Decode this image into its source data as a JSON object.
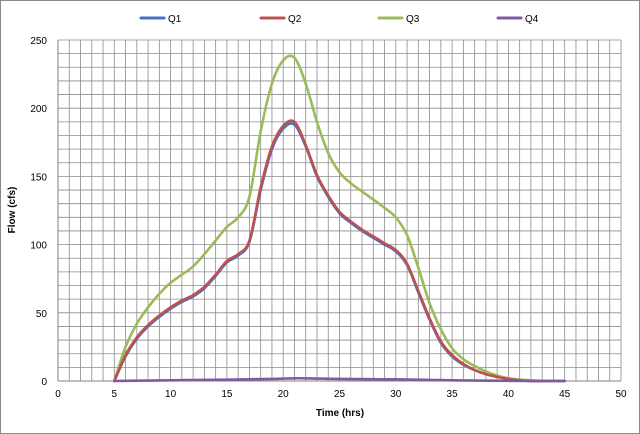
{
  "chart_data": {
    "type": "line",
    "title": "",
    "xlabel": "Time (hrs)",
    "ylabel": "Flow (cfs)",
    "xlim": [
      0,
      50
    ],
    "ylim": [
      0,
      250
    ],
    "x_ticks": [
      "0",
      "5",
      "10",
      "15",
      "20",
      "25",
      "30",
      "35",
      "40",
      "45",
      "50"
    ],
    "y_ticks": [
      "0",
      "50",
      "100",
      "150",
      "200",
      "250"
    ],
    "grid": true,
    "legend_position": "top",
    "series": [
      {
        "name": "Q1",
        "color": "#4472C4",
        "x": [
          5,
          6,
          7,
          8,
          9,
          10,
          11,
          12,
          13,
          14,
          15,
          16,
          17,
          18,
          19,
          20,
          21,
          22,
          23,
          24,
          25,
          26,
          27,
          28,
          29,
          30,
          31,
          32,
          33,
          34,
          35,
          36,
          37,
          38,
          39,
          40,
          41,
          42,
          43,
          44,
          45
        ],
        "y": [
          0,
          18,
          31,
          40,
          47,
          53,
          58,
          62,
          68,
          77,
          87,
          92,
          102,
          140,
          170,
          185,
          188,
          172,
          150,
          135,
          123,
          116,
          110,
          105,
          100,
          95,
          85,
          65,
          45,
          28,
          18,
          12,
          8,
          5,
          3,
          1.5,
          0.5,
          0,
          0,
          0,
          0
        ]
      },
      {
        "name": "Q2",
        "color": "#C0504D",
        "x": [
          5,
          6,
          7,
          8,
          9,
          10,
          11,
          12,
          13,
          14,
          15,
          16,
          17,
          18,
          19,
          20,
          21,
          22,
          23,
          24,
          25,
          26,
          27,
          28,
          29,
          30,
          31,
          32,
          33,
          34,
          35,
          36,
          37,
          38,
          39,
          40,
          41,
          42,
          43,
          44,
          45
        ],
        "y": [
          0,
          19,
          32,
          41,
          48,
          54,
          59,
          63,
          69,
          78,
          88,
          93,
          103,
          142,
          172,
          187,
          190,
          173,
          151,
          136,
          124,
          117,
          111,
          106,
          101,
          96,
          86,
          66,
          46,
          29,
          19,
          12.5,
          8,
          5,
          3,
          1.5,
          0.5,
          0,
          0,
          0,
          0
        ]
      },
      {
        "name": "Q3",
        "color": "#9BBB59",
        "x": [
          5,
          6,
          7,
          8,
          9,
          10,
          11,
          12,
          13,
          14,
          15,
          16,
          17,
          18,
          19,
          20,
          21,
          22,
          23,
          24,
          25,
          26,
          27,
          28,
          29,
          30,
          31,
          32,
          33,
          34,
          35,
          36,
          37,
          38,
          39,
          40,
          41,
          42,
          43,
          44,
          45
        ],
        "y": [
          0,
          25,
          42,
          54,
          64,
          72,
          78,
          84,
          93,
          103,
          113,
          120,
          135,
          183,
          218,
          235,
          237,
          218,
          190,
          167,
          153,
          145,
          139,
          133,
          127,
          120,
          107,
          83,
          57,
          38,
          24,
          16,
          11,
          7,
          4,
          2,
          1,
          0.5,
          0,
          0,
          0
        ]
      },
      {
        "name": "Q4",
        "color": "#7F5AA2",
        "x": [
          5,
          10,
          15,
          19,
          21,
          23,
          25,
          30,
          33,
          35,
          40,
          45
        ],
        "y": [
          0,
          0.5,
          1,
          1.5,
          2,
          1.8,
          1.5,
          1.2,
          0.8,
          0.5,
          0.1,
          0
        ]
      }
    ]
  }
}
